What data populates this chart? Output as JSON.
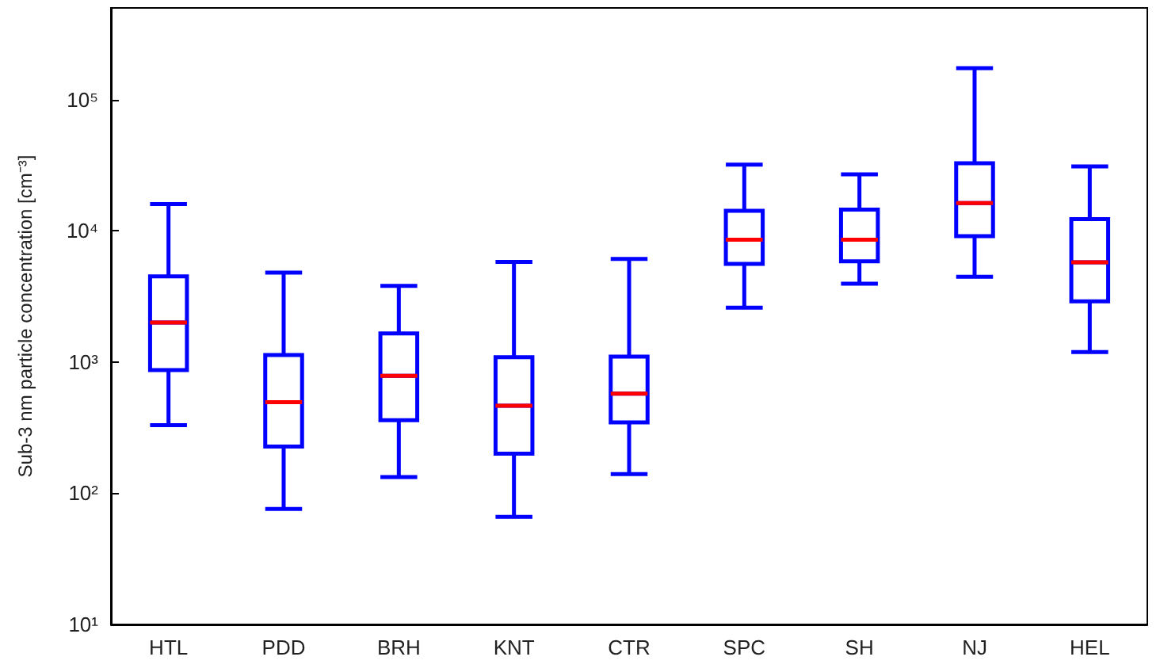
{
  "chart_data": {
    "type": "box",
    "ylabel": "Sub-3 nm particle concentration [cm⁻³]",
    "categories": [
      "HTL",
      "PDD",
      "BRH",
      "KNT",
      "CTR",
      "SPC",
      "SH",
      "NJ",
      "HEL"
    ],
    "log": true,
    "grid": false,
    "ylim": [
      10,
      500000
    ],
    "yticks": [
      {
        "value": 10,
        "label": "10¹"
      },
      {
        "value": 100,
        "label": "10²"
      },
      {
        "value": 1000,
        "label": "10³"
      },
      {
        "value": 10000,
        "label": "10⁴"
      },
      {
        "value": 100000,
        "label": "10⁵"
      }
    ],
    "series": [
      {
        "color": "#0000ff",
        "boxes": [
          {
            "low": 330,
            "q1": 870,
            "median": 2000,
            "q3": 4500,
            "high": 16000
          },
          {
            "low": 76,
            "q1": 227,
            "median": 495,
            "q3": 1130,
            "high": 4800
          },
          {
            "low": 133,
            "q1": 360,
            "median": 785,
            "q3": 1650,
            "high": 3800
          },
          {
            "low": 66,
            "q1": 200,
            "median": 465,
            "q3": 1090,
            "high": 5800
          },
          {
            "low": 140,
            "q1": 347,
            "median": 575,
            "q3": 1100,
            "high": 6100
          },
          {
            "low": 2600,
            "q1": 5600,
            "median": 8550,
            "q3": 14200,
            "high": 32000
          },
          {
            "low": 3950,
            "q1": 5860,
            "median": 8550,
            "q3": 14500,
            "high": 27000
          },
          {
            "low": 4460,
            "q1": 9100,
            "median": 16300,
            "q3": 32700,
            "high": 174000
          },
          {
            "low": 1190,
            "q1": 2900,
            "median": 5750,
            "q3": 12300,
            "high": 31000
          }
        ]
      }
    ]
  }
}
